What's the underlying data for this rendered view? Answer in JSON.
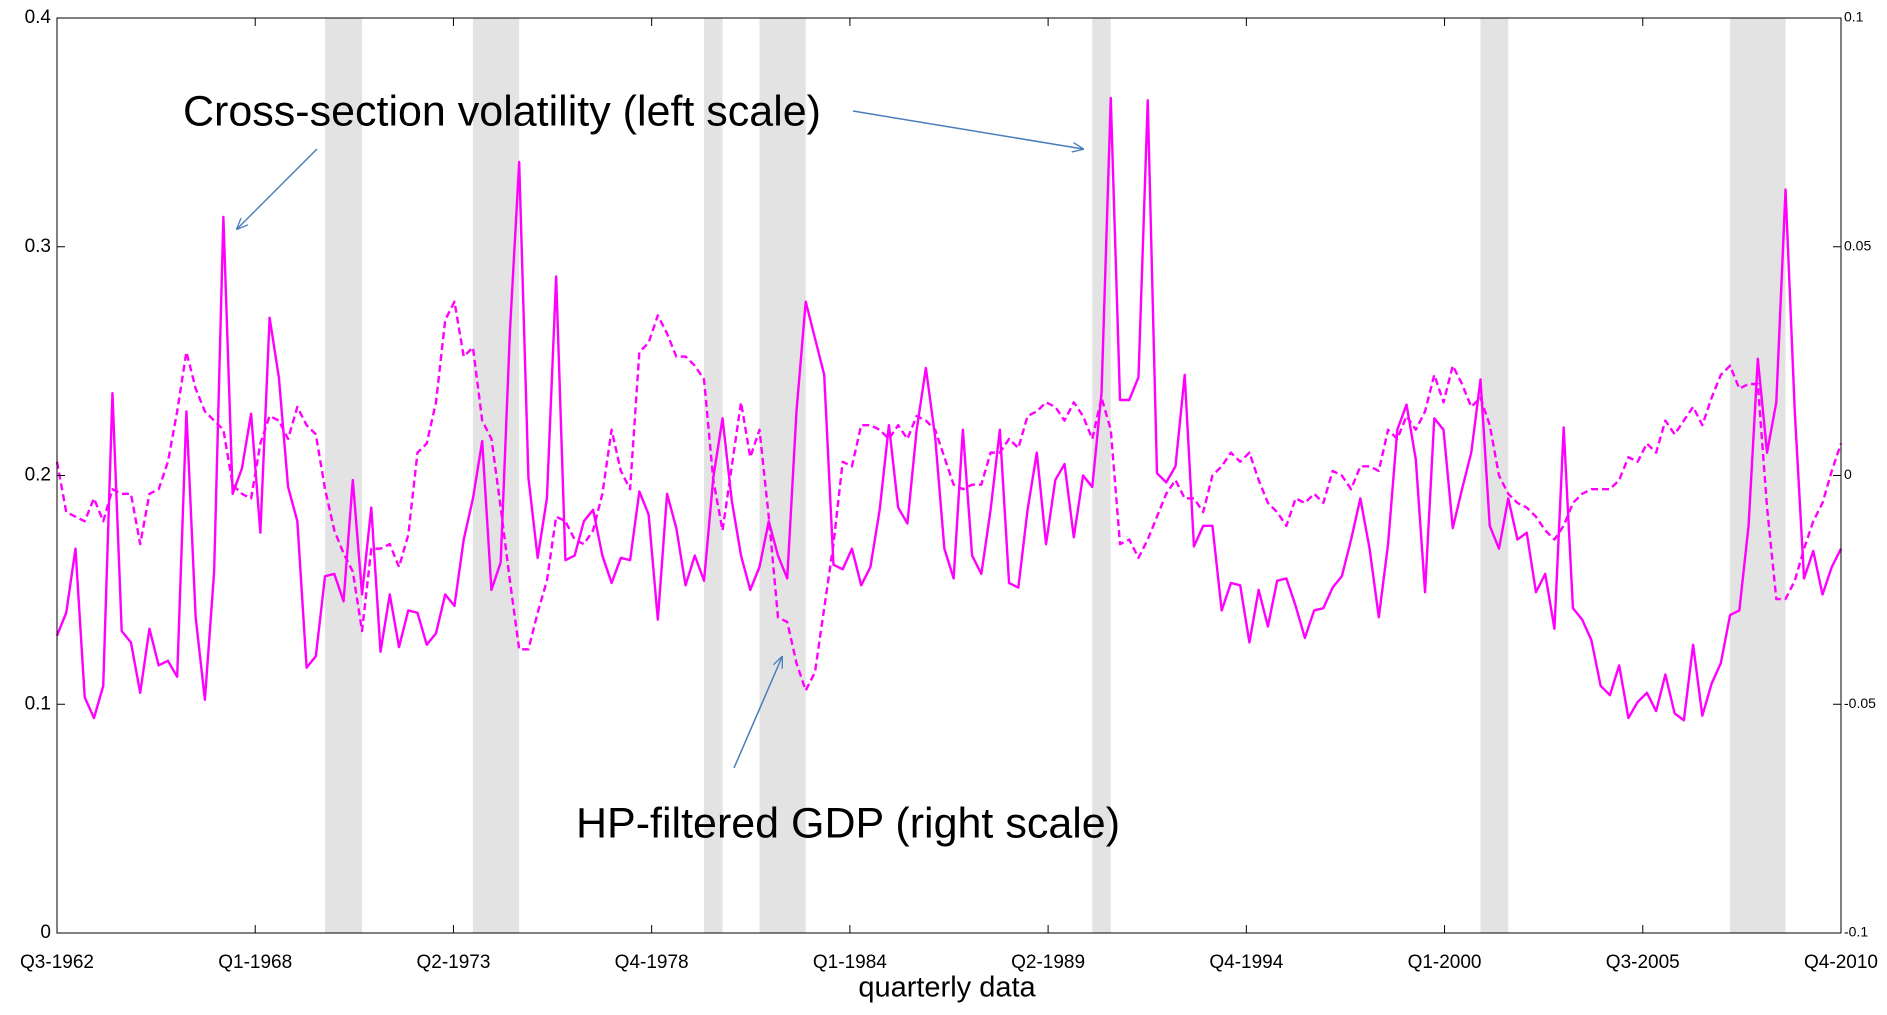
{
  "chart_data": {
    "type": "line",
    "x_label": "quarterly data",
    "xlim": [
      1,
      194
    ],
    "xticks": [
      {
        "value": 1,
        "label": "Q3-1962"
      },
      {
        "value": 22.444,
        "label": "Q1-1968"
      },
      {
        "value": 43.889,
        "label": "Q2-1973"
      },
      {
        "value": 65.333,
        "label": "Q4-1978"
      },
      {
        "value": 86.778,
        "label": "Q1-1984"
      },
      {
        "value": 108.222,
        "label": "Q2-1989"
      },
      {
        "value": 129.667,
        "label": "Q4-1994"
      },
      {
        "value": 151.111,
        "label": "Q1-2000"
      },
      {
        "value": 172.556,
        "label": "Q3-2005"
      },
      {
        "value": 194,
        "label": "Q4-2010"
      }
    ],
    "ylim": [
      0,
      0.4
    ],
    "yticks": [
      0,
      0.1,
      0.2,
      0.3,
      0.4
    ],
    "y2lim": [
      -0.1,
      0.1
    ],
    "y2ticks": [
      -0.1,
      -0.05,
      0,
      0.05,
      0.1
    ],
    "shaded_regions": [
      [
        30,
        34
      ],
      [
        46,
        51
      ],
      [
        71,
        73
      ],
      [
        77,
        82
      ],
      [
        113,
        115
      ],
      [
        155,
        158
      ],
      [
        182,
        188
      ]
    ],
    "shade_color": "#e3e3e3",
    "x": [
      1,
      2,
      3,
      4,
      5,
      6,
      7,
      8,
      9,
      10,
      11,
      12,
      13,
      14,
      15,
      16,
      17,
      18,
      19,
      20,
      21,
      22,
      23,
      24,
      25,
      26,
      27,
      28,
      29,
      30,
      31,
      32,
      33,
      34,
      35,
      36,
      37,
      38,
      39,
      40,
      41,
      42,
      43,
      44,
      45,
      46,
      47,
      48,
      49,
      50,
      51,
      52,
      53,
      54,
      55,
      56,
      57,
      58,
      59,
      60,
      61,
      62,
      63,
      64,
      65,
      66,
      67,
      68,
      69,
      70,
      71,
      72,
      73,
      74,
      75,
      76,
      77,
      78,
      79,
      80,
      81,
      82,
      83,
      84,
      85,
      86,
      87,
      88,
      89,
      90,
      91,
      92,
      93,
      94,
      95,
      96,
      97,
      98,
      99,
      100,
      101,
      102,
      103,
      104,
      105,
      106,
      107,
      108,
      109,
      110,
      111,
      112,
      113,
      114,
      115,
      116,
      117,
      118,
      119,
      120,
      121,
      122,
      123,
      124,
      125,
      126,
      127,
      128,
      129,
      130,
      131,
      132,
      133,
      134,
      135,
      136,
      137,
      138,
      139,
      140,
      141,
      142,
      143,
      144,
      145,
      146,
      147,
      148,
      149,
      150,
      151,
      152,
      153,
      154,
      155,
      156,
      157,
      158,
      159,
      160,
      161,
      162,
      163,
      164,
      165,
      166,
      167,
      168,
      169,
      170,
      171,
      172,
      173,
      174,
      175,
      176,
      177,
      178,
      179,
      180,
      181,
      182,
      183,
      184,
      185,
      186,
      187,
      188,
      189,
      190,
      191,
      192,
      193,
      194
    ],
    "series": [
      {
        "name": "Cross-section volatility (left scale)",
        "color": "#ff00ff",
        "dashed": false,
        "axis": "y",
        "values": [
          0.13,
          0.14,
          0.168,
          0.103,
          0.094,
          0.108,
          0.236,
          0.132,
          0.127,
          0.105,
          0.133,
          0.117,
          0.119,
          0.112,
          0.228,
          0.138,
          0.102,
          0.158,
          0.313,
          0.192,
          0.203,
          0.227,
          0.175,
          0.269,
          0.243,
          0.195,
          0.18,
          0.116,
          0.121,
          0.156,
          0.157,
          0.145,
          0.198,
          0.148,
          0.186,
          0.123,
          0.148,
          0.125,
          0.141,
          0.14,
          0.126,
          0.131,
          0.148,
          0.143,
          0.172,
          0.19,
          0.215,
          0.15,
          0.162,
          0.263,
          0.337,
          0.199,
          0.164,
          0.19,
          0.287,
          0.163,
          0.165,
          0.18,
          0.185,
          0.165,
          0.153,
          0.164,
          0.163,
          0.193,
          0.183,
          0.137,
          0.192,
          0.177,
          0.152,
          0.165,
          0.154,
          0.199,
          0.225,
          0.189,
          0.165,
          0.15,
          0.16,
          0.18,
          0.165,
          0.155,
          0.228,
          0.276,
          0.26,
          0.244,
          0.161,
          0.159,
          0.168,
          0.152,
          0.16,
          0.185,
          0.222,
          0.186,
          0.179,
          0.22,
          0.247,
          0.217,
          0.168,
          0.155,
          0.22,
          0.165,
          0.157,
          0.185,
          0.22,
          0.153,
          0.151,
          0.185,
          0.21,
          0.17,
          0.198,
          0.205,
          0.173,
          0.2,
          0.195,
          0.236,
          0.365,
          0.233,
          0.233,
          0.243,
          0.364,
          0.201,
          0.197,
          0.204,
          0.244,
          0.169,
          0.178,
          0.178,
          0.141,
          0.153,
          0.152,
          0.127,
          0.15,
          0.134,
          0.154,
          0.155,
          0.143,
          0.129,
          0.141,
          0.142,
          0.151,
          0.156,
          0.172,
          0.19,
          0.168,
          0.138,
          0.17,
          0.22,
          0.231,
          0.207,
          0.149,
          0.225,
          0.22,
          0.177,
          0.194,
          0.21,
          0.242,
          0.178,
          0.168,
          0.19,
          0.172,
          0.175,
          0.149,
          0.157,
          0.133,
          0.221,
          0.142,
          0.137,
          0.128,
          0.108,
          0.104,
          0.117,
          0.094,
          0.101,
          0.105,
          0.097,
          0.113,
          0.096,
          0.093,
          0.126,
          0.095,
          0.109,
          0.118,
          0.139,
          0.141,
          0.178,
          0.251,
          0.21,
          0.232,
          0.325,
          0.228,
          0.155,
          0.167,
          0.148,
          0.16,
          0.168
        ]
      },
      {
        "name": "HP-filtered GDP (right scale)",
        "color": "#ff00ff",
        "dashed": true,
        "axis": "y2",
        "values": [
          0.003,
          -0.008,
          -0.009,
          -0.01,
          -0.005,
          -0.01,
          -0.003,
          -0.004,
          -0.004,
          -0.015,
          -0.004,
          -0.003,
          0.003,
          0.014,
          0.027,
          0.019,
          0.014,
          0.012,
          0.01,
          -0.002,
          -0.004,
          -0.005,
          0.007,
          0.013,
          0.012,
          0.008,
          0.015,
          0.011,
          0.009,
          -0.003,
          -0.012,
          -0.017,
          -0.021,
          -0.034,
          -0.016,
          -0.016,
          -0.015,
          -0.02,
          -0.013,
          0.005,
          0.007,
          0.016,
          0.034,
          0.038,
          0.026,
          0.028,
          0.012,
          0.008,
          -0.007,
          -0.023,
          -0.038,
          -0.038,
          -0.03,
          -0.023,
          -0.009,
          -0.01,
          -0.014,
          -0.015,
          -0.012,
          -0.004,
          0.01,
          0.001,
          -0.003,
          0.027,
          0.029,
          0.035,
          0.031,
          0.026,
          0.026,
          0.024,
          0.021,
          -0.001,
          -0.012,
          0.002,
          0.016,
          0.004,
          0.01,
          -0.009,
          -0.031,
          -0.032,
          -0.041,
          -0.047,
          -0.043,
          -0.029,
          -0.015,
          0.003,
          0.002,
          0.011,
          0.011,
          0.01,
          0.008,
          0.011,
          0.008,
          0.013,
          0.012,
          0.01,
          0.004,
          -0.002,
          -0.003,
          -0.002,
          -0.002,
          0.005,
          0.005,
          0.008,
          0.006,
          0.013,
          0.014,
          0.016,
          0.015,
          0.012,
          0.016,
          0.013,
          0.008,
          0.017,
          0.01,
          -0.015,
          -0.014,
          -0.018,
          -0.014,
          -0.009,
          -0.004,
          -0.001,
          -0.005,
          -0.005,
          -0.008,
          0,
          0.002,
          0.005,
          0.003,
          0.005,
          -0.001,
          -0.006,
          -0.008,
          -0.011,
          -0.005,
          -0.006,
          -0.004,
          -0.006,
          0.001,
          0,
          -0.003,
          0.002,
          0.002,
          0.001,
          0.01,
          0.008,
          0.013,
          0.01,
          0.014,
          0.022,
          0.016,
          0.024,
          0.02,
          0.015,
          0.017,
          0.011,
          0,
          -0.004,
          -0.006,
          -0.007,
          -0.009,
          -0.012,
          -0.014,
          -0.011,
          -0.006,
          -0.004,
          -0.003,
          -0.003,
          -0.003,
          -0.001,
          0.004,
          0.003,
          0.007,
          0.005,
          0.012,
          0.009,
          0.012,
          0.015,
          0.011,
          0.017,
          0.022,
          0.024,
          0.019,
          0.02,
          0.02,
          -0.007,
          -0.027,
          -0.027,
          -0.023,
          -0.016,
          -0.01,
          -0.006,
          0.001,
          0.007
        ]
      }
    ]
  }
}
